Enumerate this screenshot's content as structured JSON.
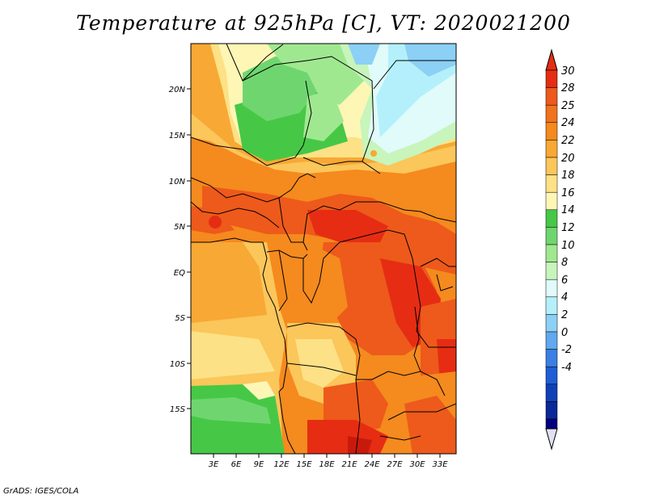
{
  "title": "Temperature at 925hPa [C], VT: 2020021200",
  "credit": "GrADS: IGES/COLA",
  "map": {
    "lon_range": [
      0,
      35
    ],
    "lat_range": [
      -20,
      25
    ],
    "x_ticks": [
      "3E",
      "6E",
      "9E",
      "12E",
      "15E",
      "18E",
      "21E",
      "24E",
      "27E",
      "30E",
      "33E"
    ],
    "y_ticks": [
      "20N",
      "15N",
      "10N",
      "5N",
      "EQ",
      "5S",
      "10S",
      "15S"
    ]
  },
  "colorbar": {
    "labels": [
      "30",
      "28",
      "25",
      "24",
      "22",
      "20",
      "18",
      "16",
      "14",
      "12",
      "10",
      "8",
      "6",
      "4",
      "2",
      "0",
      "-2",
      "-4"
    ],
    "colors": [
      "#ffffff",
      "#e62d13",
      "#ed5a1b",
      "#f58a1e",
      "#f8a834",
      "#fbc65a",
      "#fde186",
      "#fdf6b5",
      "#46c846",
      "#6fd66f",
      "#a0e890",
      "#c7f5bb",
      "#e0fbf9",
      "#b4f0fb",
      "#8cd0f5",
      "#60a9ee",
      "#3b7fe3",
      "#1f5ed4",
      "#1040b8",
      "#0a2899",
      "#000080"
    ]
  }
}
